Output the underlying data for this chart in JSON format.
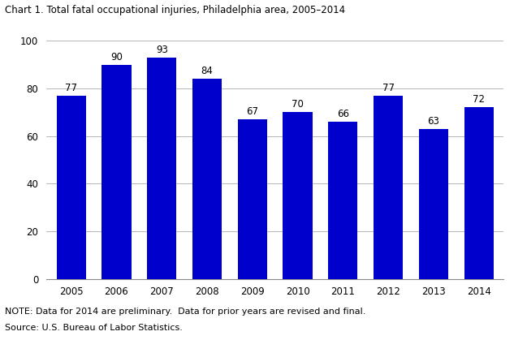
{
  "title": "Chart 1. Total fatal occupational injuries, Philadelphia area, 2005–2014",
  "years": [
    "2005",
    "2006",
    "2007",
    "2008",
    "2009",
    "2010",
    "2011",
    "2012",
    "2013",
    "2014"
  ],
  "values": [
    77,
    90,
    93,
    84,
    67,
    70,
    66,
    77,
    63,
    72
  ],
  "bar_color": "#0000cc",
  "ylim": [
    0,
    100
  ],
  "yticks": [
    0,
    20,
    40,
    60,
    80,
    100
  ],
  "note_line1": "NOTE: Data for 2014 are preliminary.  Data for prior years are revised and final.",
  "note_line2": "Source: U.S. Bureau of Labor Statistics.",
  "title_fontsize": 8.5,
  "label_fontsize": 8.5,
  "tick_fontsize": 8.5,
  "note_fontsize": 8.0,
  "background_color": "#ffffff",
  "grid_color": "#aaaaaa"
}
